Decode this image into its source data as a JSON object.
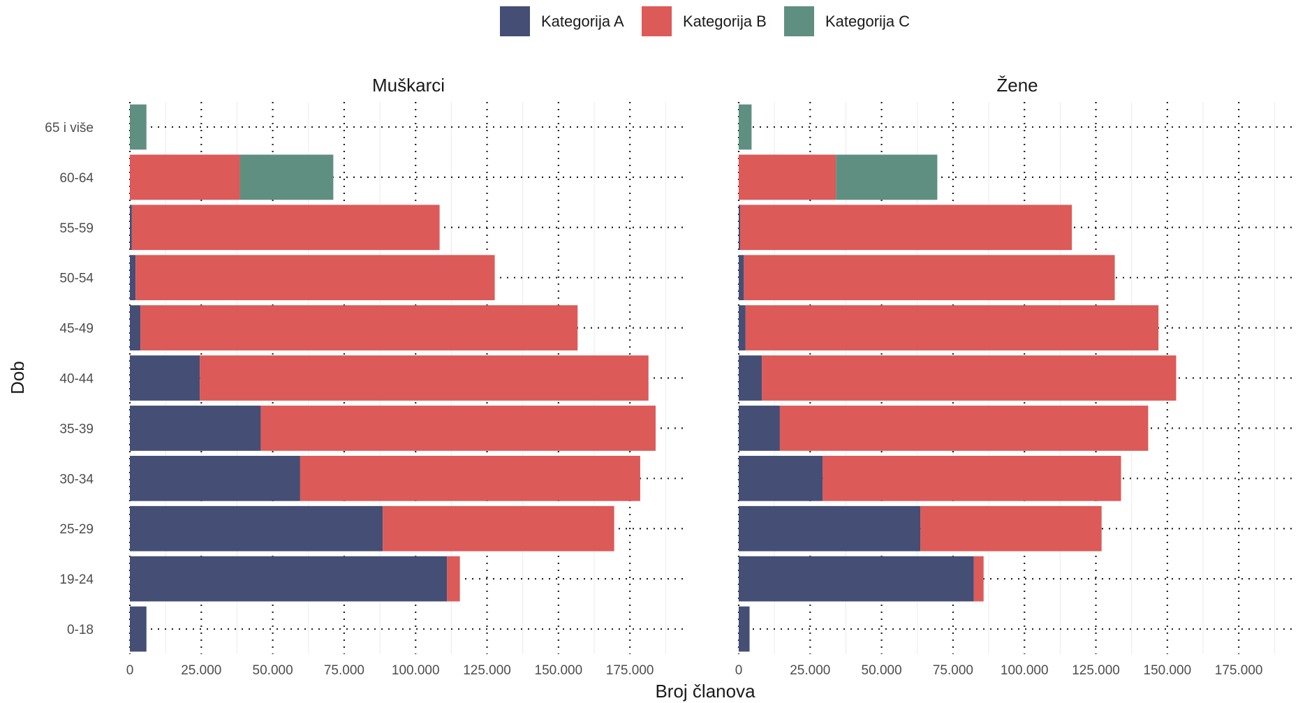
{
  "chart_data": {
    "type": "bar",
    "orientation": "horizontal",
    "stacked": true,
    "xlabel": "Broj članova",
    "ylabel": "Dob",
    "xlim": [
      0,
      195000
    ],
    "x_ticks": [
      0,
      25000,
      50000,
      75000,
      100000,
      125000,
      150000,
      175000
    ],
    "x_tick_labels": [
      "0",
      "25.000",
      "50.000",
      "75.000",
      "100.000",
      "125.000",
      "150.000",
      "175.000"
    ],
    "categories": [
      "0-18",
      "19-24",
      "25-29",
      "30-34",
      "35-39",
      "40-44",
      "45-49",
      "50-54",
      "55-59",
      "60-64",
      "65 i više"
    ],
    "legend": {
      "position": "top",
      "entries": [
        {
          "name": "Kategorija A",
          "color": "#454e75"
        },
        {
          "name": "Kategorija B",
          "color": "#dc5a58"
        },
        {
          "name": "Kategorija C",
          "color": "#5f8f80"
        }
      ]
    },
    "grid": {
      "major": "dotted",
      "minor": "light"
    },
    "facets": [
      {
        "title": "Muškarci",
        "series": [
          {
            "name": "Kategorija A",
            "values": [
              5800,
              111000,
              88500,
              59600,
              45800,
              24500,
              3700,
              2000,
              700,
              0,
              0
            ]
          },
          {
            "name": "Kategorija B",
            "values": [
              0,
              4500,
              81000,
              119000,
              138200,
              157000,
              153000,
              125700,
              107700,
              38500,
              0
            ]
          },
          {
            "name": "Kategorija C",
            "values": [
              0,
              0,
              0,
              0,
              0,
              0,
              0,
              0,
              0,
              32700,
              5800
            ]
          }
        ]
      },
      {
        "title": "Žene",
        "series": [
          {
            "name": "Kategorija A",
            "values": [
              3800,
              82300,
              63600,
              29400,
              14400,
              8100,
              2400,
              1800,
              500,
              0,
              0
            ]
          },
          {
            "name": "Kategorija B",
            "values": [
              0,
              3400,
              63400,
              104400,
              128900,
              145000,
              144500,
              129800,
              116100,
              34000,
              0
            ]
          },
          {
            "name": "Kategorija C",
            "values": [
              0,
              0,
              0,
              0,
              0,
              0,
              0,
              0,
              0,
              35500,
              4500
            ]
          }
        ]
      }
    ]
  }
}
